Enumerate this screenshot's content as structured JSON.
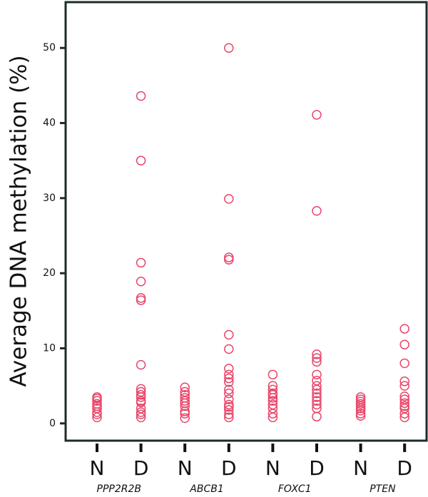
{
  "chart_data": {
    "type": "strip",
    "y_label": "Average DNA methylation (%)",
    "categories": [
      "N",
      "D",
      "N",
      "D",
      "N",
      "D",
      "N",
      "D"
    ],
    "groups": [
      "PPP2R2B",
      "ABCB1",
      "FOXC1",
      "PTEN"
    ],
    "color": "#e8476a",
    "ylim": [
      -2.3,
      56.1
    ],
    "yticks": [
      0,
      10,
      20,
      30,
      40,
      50
    ],
    "values": [
      [
        0.8,
        1.2,
        1.5,
        2,
        2.3,
        2.6,
        3,
        3.3,
        3.5
      ],
      [
        43.6,
        35,
        21.4,
        18.9,
        16.7,
        16.4,
        7.8,
        4.6,
        4.2,
        3.8,
        3.5,
        3,
        2.8,
        2,
        1.5,
        1.2,
        0.8
      ],
      [
        4.8,
        4.2,
        3.8,
        3.4,
        3,
        2.7,
        2.3,
        1.6,
        1.3,
        0.7
      ],
      [
        50,
        29.9,
        22.1,
        21.8,
        11.8,
        9.9,
        7.3,
        6.5,
        6,
        5.5,
        4.5,
        4,
        3.2,
        2.5,
        2.2,
        1.8,
        1.2,
        0.8
      ],
      [
        6.5,
        5,
        4.5,
        4,
        3.8,
        3.4,
        3,
        2.5,
        2,
        1.3,
        0.8
      ],
      [
        41.1,
        28.3,
        9.2,
        8.7,
        8.2,
        6.5,
        5.7,
        5,
        4.5,
        4,
        3.5,
        3,
        2.5,
        2,
        0.9
      ],
      [
        3.5,
        3.2,
        2.9,
        2.6,
        2.3,
        2,
        1.7,
        1.3,
        1
      ],
      [
        12.6,
        10.5,
        8,
        5.6,
        5,
        3.6,
        3.2,
        2.7,
        2.3,
        2,
        1.3,
        0.8
      ]
    ]
  }
}
